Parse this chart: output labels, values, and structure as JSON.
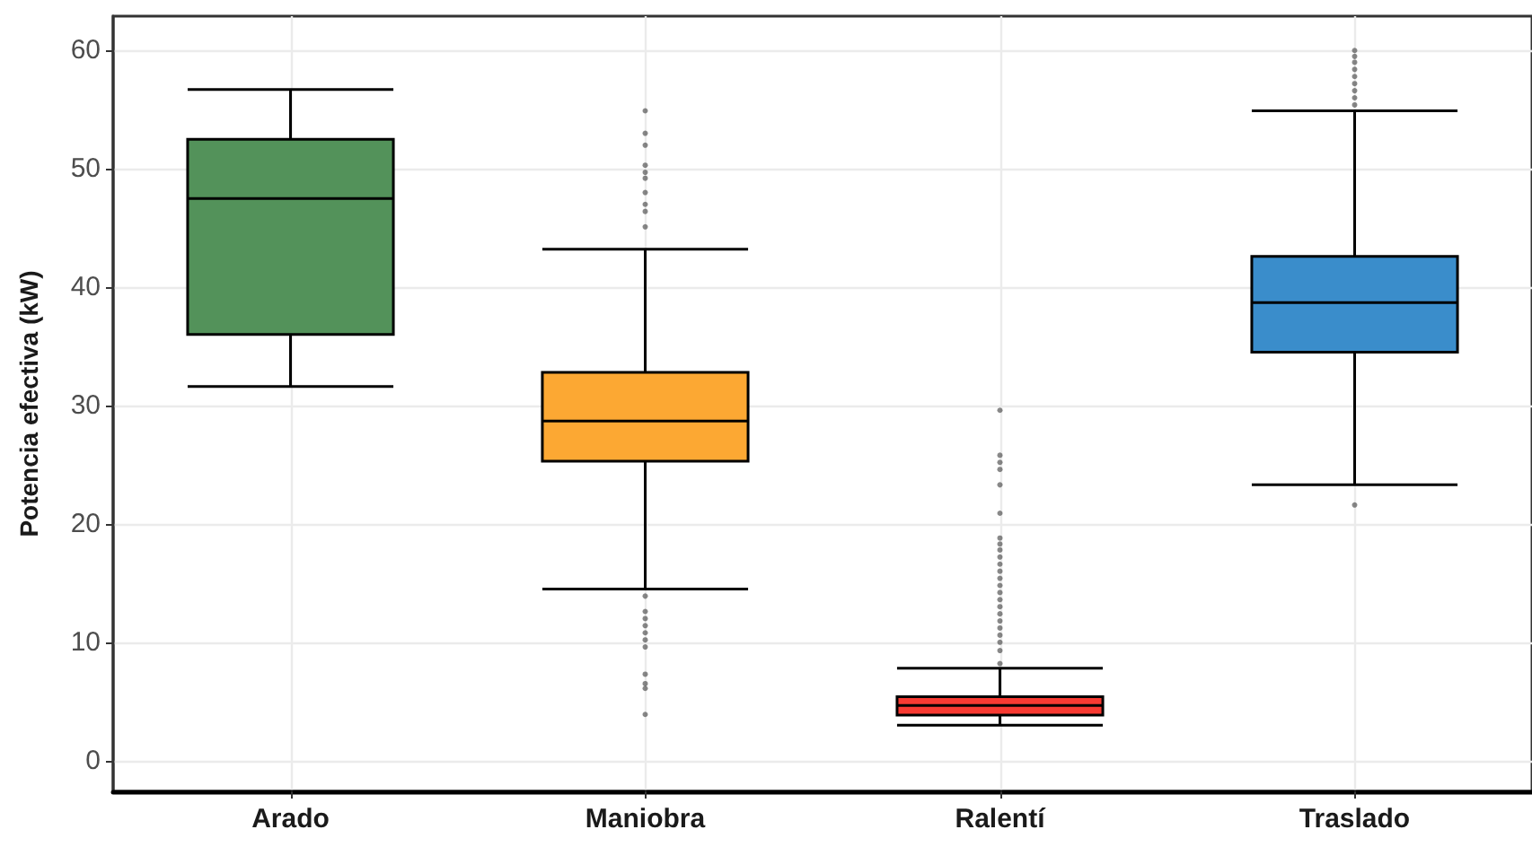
{
  "chart_data": {
    "type": "box",
    "ylabel": "Potencia efectiva (kW)",
    "categories": [
      "Arado",
      "Maniobra",
      "Ralentí",
      "Traslado"
    ],
    "colors": [
      "#53925a",
      "#fca833",
      "#f83a32",
      "#3a8dcb"
    ],
    "boxes": [
      {
        "low": 31.6,
        "q1": 36.0,
        "median": 47.5,
        "q3": 52.5,
        "high": 56.7
      },
      {
        "low": 14.5,
        "q1": 25.3,
        "median": 28.7,
        "q3": 32.8,
        "high": 43.2,
        "outliers": [
          54.9,
          53.0,
          52.0,
          50.3,
          49.7,
          49.2,
          48.0,
          47.0,
          46.4,
          45.1,
          13.9,
          12.6,
          12.0,
          11.4,
          10.8,
          10.2,
          9.6,
          7.3,
          6.5,
          6.1,
          3.9
        ]
      },
      {
        "low": 3.0,
        "q1": 3.85,
        "median": 4.65,
        "q3": 5.4,
        "high": 7.8,
        "outliers": [
          29.6,
          25.8,
          25.2,
          24.6,
          23.3,
          20.9,
          18.8,
          18.3,
          17.8,
          17.2,
          16.6,
          16.0,
          15.4,
          14.8,
          14.2,
          13.6,
          13.0,
          12.4,
          11.8,
          11.2,
          10.6,
          10.0,
          9.3,
          8.2
        ]
      },
      {
        "low": 23.3,
        "q1": 34.5,
        "median": 38.7,
        "q3": 42.6,
        "high": 54.9,
        "outliers": [
          60.0,
          59.5,
          59.0,
          58.4,
          57.8,
          57.2,
          56.6,
          56.0,
          55.4,
          21.6
        ]
      }
    ],
    "ylim": [
      -2.6,
      62.9
    ],
    "yticks": [
      0,
      10,
      20,
      30,
      40,
      50,
      60
    ],
    "grid": true
  }
}
